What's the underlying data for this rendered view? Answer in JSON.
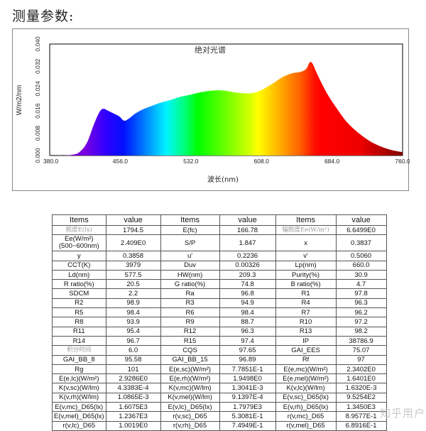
{
  "heading": "测量参数:",
  "watermark": "知乎用户",
  "chart_data": {
    "type": "area",
    "title": "绝对光谱",
    "xlabel": "波长(nm)",
    "ylabel": "W/m2/nm",
    "xlim": [
      380.0,
      760.0
    ],
    "ylim": [
      0.0,
      0.04
    ],
    "x_ticks": [
      "380.0",
      "456.0",
      "532.0",
      "608.0",
      "684.0",
      "760.0"
    ],
    "y_ticks": [
      "0.000",
      "0.008",
      "0.016",
      "0.024",
      "0.032",
      "0.040"
    ],
    "grid": false,
    "fill": "visible-spectrum-gradient",
    "x": [
      380,
      395,
      405,
      412,
      420,
      428,
      434,
      438,
      442,
      448,
      455,
      460,
      465,
      472,
      480,
      490,
      500,
      510,
      520,
      530,
      540,
      550,
      560,
      570,
      580,
      590,
      600,
      610,
      620,
      630,
      640,
      650,
      656,
      660,
      663,
      667,
      672,
      680,
      690,
      700,
      710,
      720,
      730,
      740,
      750,
      760
    ],
    "values": [
      0.0,
      0.0,
      0.0003,
      0.0012,
      0.0045,
      0.0115,
      0.0158,
      0.0168,
      0.0162,
      0.0152,
      0.014,
      0.0125,
      0.0132,
      0.015,
      0.0165,
      0.0178,
      0.019,
      0.0199,
      0.021,
      0.0217,
      0.0225,
      0.0231,
      0.0234,
      0.0232,
      0.0226,
      0.0223,
      0.0225,
      0.0238,
      0.0258,
      0.028,
      0.0294,
      0.03,
      0.031,
      0.0334,
      0.033,
      0.03,
      0.0265,
      0.0215,
      0.0165,
      0.012,
      0.0088,
      0.0062,
      0.0042,
      0.0028,
      0.0018,
      0.0012
    ],
    "peak_wavelength_nm": 660.0
  },
  "table": {
    "headers": [
      "Items",
      "value",
      "Items",
      "value",
      "Items",
      "value"
    ],
    "rows": [
      [
        "照度E(lx)",
        "1794.5",
        "E(fc)",
        "166.78",
        "辐照度Ee(W/m²)",
        "6.6499E0"
      ],
      [
        "Ee(W/m²)(500~600nm)",
        "2.409E0",
        "S/P",
        "1.847",
        "x",
        "0.3837"
      ],
      [
        "y",
        "0.3858",
        "u'",
        "0.2236",
        "v'",
        "0.5060"
      ],
      [
        "CCT(K)",
        "3979",
        "Duv",
        "0.00326",
        "Lp(nm)",
        "660.0"
      ],
      [
        "Ld(nm)",
        "577.5",
        "HW(nm)",
        "209.3",
        "Purity(%)",
        "30.9"
      ],
      [
        "R ratio(%)",
        "20.5",
        "G ratio(%)",
        "74.8",
        "B ratio(%)",
        "4.7"
      ],
      [
        "SDCM",
        "2.2",
        "Ra",
        "96.8",
        "R1",
        "97.8"
      ],
      [
        "R2",
        "98.9",
        "R3",
        "94.9",
        "R4",
        "96.3"
      ],
      [
        "R5",
        "98.4",
        "R6",
        "98.4",
        "R7",
        "96.2"
      ],
      [
        "R8",
        "93.9",
        "R9",
        "88.7",
        "R10",
        "97.2"
      ],
      [
        "R11",
        "95.4",
        "R12",
        "96.3",
        "R13",
        "98.2"
      ],
      [
        "R14",
        "96.7",
        "R15",
        "97.4",
        "IP",
        "38786.9"
      ],
      [
        "积分时间",
        "6.0",
        "CQS",
        "97.65",
        "GAI_EES",
        "75.07"
      ],
      [
        "GAI_BB_8",
        "95.58",
        "GAI_BB_15",
        "96.89",
        "Rf",
        "97"
      ],
      [
        "Rg",
        "101",
        "E(e,sc)(W/m²)",
        "7.7851E-1",
        "E(e,mc)(W/m²)",
        "2.3402E0"
      ],
      [
        "E(e,lc)(W/m²)",
        "2.9286E0",
        "E(e,rh)(W/m²)",
        "1.9498E0",
        "E(e,mel)(W/m²)",
        "1.6401E0"
      ],
      [
        "K(v,sc)(W/lm)",
        "4.3383E-4",
        "K(v,mc)(W/lm)",
        "1.3041E-3",
        "K(v,lc)(W/lm)",
        "1.6320E-3"
      ],
      [
        "K(v,rh)(W/lm)",
        "1.0865E-3",
        "K(v,mel)(W/lm)",
        "9.1397E-4",
        "E(v,sc)_D65(lx)",
        "9.5254E2"
      ],
      [
        "E(v,mc)_D65(lx)",
        "1.6075E3",
        "E(v,lc)_D65(lx)",
        "1.7979E3",
        "E(v,rh)_D65(lx)",
        "1.3450E3"
      ],
      [
        "E(v,mel)_D65(lx)",
        "1.2367E3",
        "r(v,sc)_D65",
        "5.3081E-1",
        "r(v,mc)_D65",
        "8.9577E-1"
      ],
      [
        "r(v,lc)_D65",
        "1.0019E0",
        "r(v,rh)_D65",
        "7.4949E-1",
        "r(v,mel)_D65",
        "6.8916E-1"
      ]
    ],
    "cn_cells": [
      [
        0,
        0
      ],
      [
        0,
        4
      ],
      [
        12,
        0
      ]
    ],
    "wrap_cells": [
      [
        1,
        0
      ]
    ]
  }
}
